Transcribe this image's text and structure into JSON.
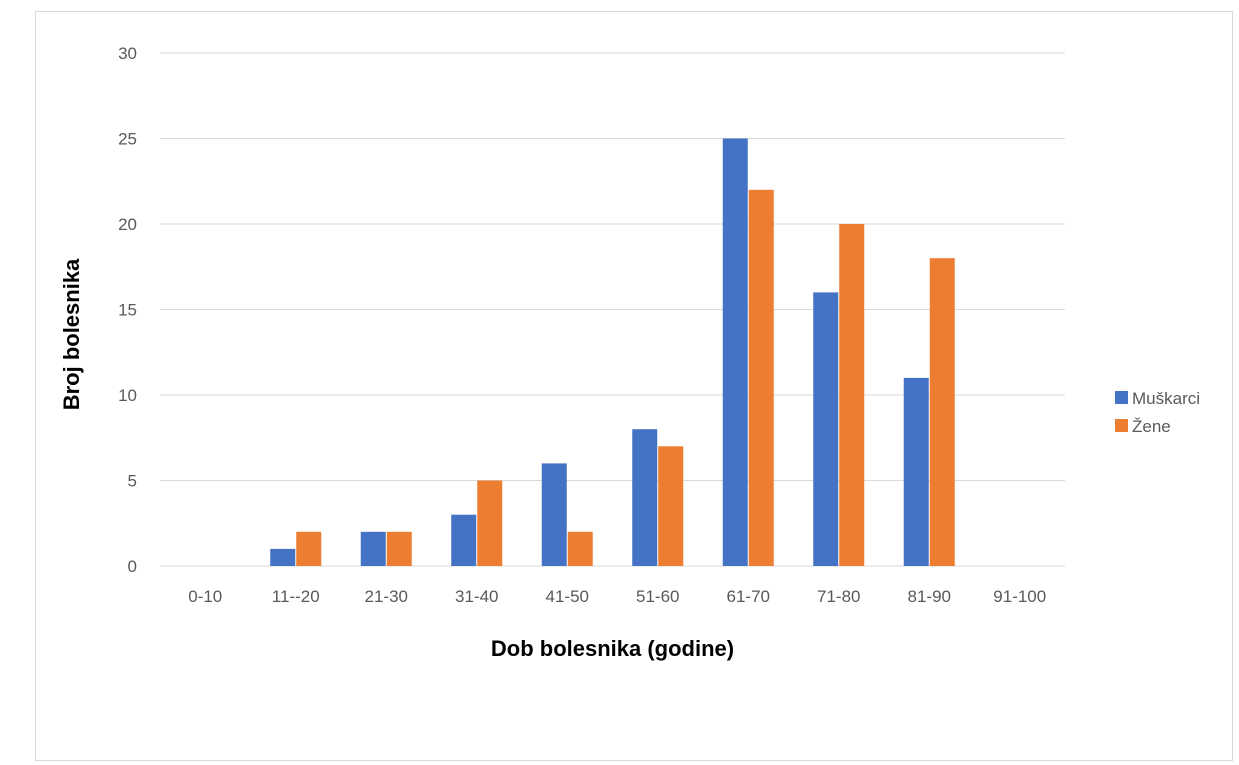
{
  "chart_data": {
    "type": "bar",
    "categories": [
      "0-10",
      "11--20",
      "21-30",
      "31-40",
      "41-50",
      "51-60",
      "61-70",
      "71-80",
      "81-90",
      "91-100"
    ],
    "series": [
      {
        "name": "Muškarci",
        "color": "#4472c4",
        "values": [
          0,
          1,
          2,
          3,
          6,
          8,
          25,
          16,
          11,
          0
        ]
      },
      {
        "name": "Žene",
        "color": "#ed7d31",
        "values": [
          0,
          2,
          2,
          5,
          2,
          7,
          22,
          20,
          18,
          0
        ]
      }
    ],
    "title": "",
    "xlabel": "Dob bolesnika (godine)",
    "ylabel": "Broj bolesnika",
    "ylim": [
      0,
      30
    ],
    "yticks": [
      0,
      5,
      10,
      15,
      20,
      25,
      30
    ],
    "grid": true,
    "legend_position": "right"
  }
}
